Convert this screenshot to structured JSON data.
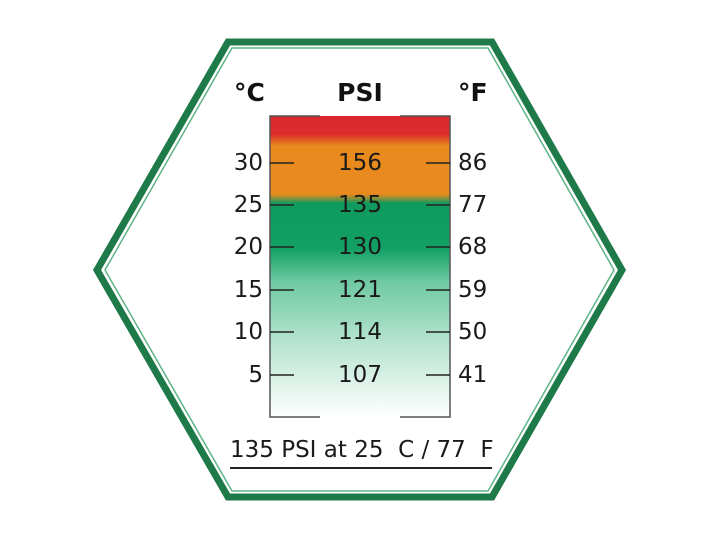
{
  "headers": {
    "celsius": "°C",
    "psi": "PSI",
    "fahrenheit": "°F"
  },
  "rows": [
    {
      "c": "30",
      "psi": "156",
      "f": "86"
    },
    {
      "c": "25",
      "psi": "135",
      "f": "77"
    },
    {
      "c": "20",
      "psi": "130",
      "f": "68"
    },
    {
      "c": "15",
      "psi": "121",
      "f": "59"
    },
    {
      "c": "10",
      "psi": "114",
      "f": "50"
    },
    {
      "c": "5",
      "psi": "107",
      "f": "41"
    }
  ],
  "footer": "135 PSI at 25  C / 77  F",
  "colors": {
    "border": "#1f7a4a",
    "red": "#d9262e",
    "orange": "#e88a1e",
    "green": "#0f9a5e"
  }
}
